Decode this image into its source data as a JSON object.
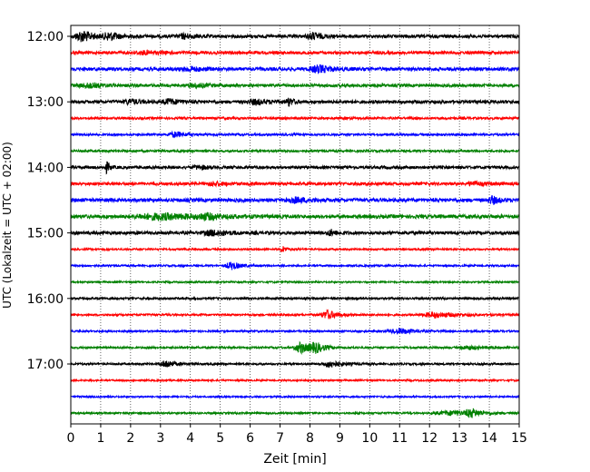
{
  "chart_data": {
    "type": "line",
    "title": "",
    "xlabel": "Zeit  [min]",
    "ylabel": "UTC (Lokalzeit = UTC + 02:00)",
    "xlim": [
      0,
      15
    ],
    "x_ticks": [
      0,
      1,
      2,
      3,
      4,
      5,
      6,
      7,
      8,
      9,
      10,
      11,
      12,
      13,
      14,
      15
    ],
    "y_tick_labels": [
      "12:00",
      "13:00",
      "14:00",
      "15:00",
      "16:00",
      "17:00"
    ],
    "trace_start_times": [
      "12:00",
      "12:15",
      "12:30",
      "12:45",
      "13:00",
      "13:15",
      "13:30",
      "13:45",
      "14:00",
      "14:15",
      "14:30",
      "14:45",
      "15:00",
      "15:15",
      "15:30",
      "15:45",
      "16:00",
      "16:15",
      "16:30",
      "16:45",
      "17:00",
      "17:15",
      "17:30",
      "17:45"
    ],
    "trace_colors": [
      "#000000",
      "#ff0000",
      "#0000ff",
      "#008000"
    ],
    "grid": "vertical dotted at each minute"
  }
}
